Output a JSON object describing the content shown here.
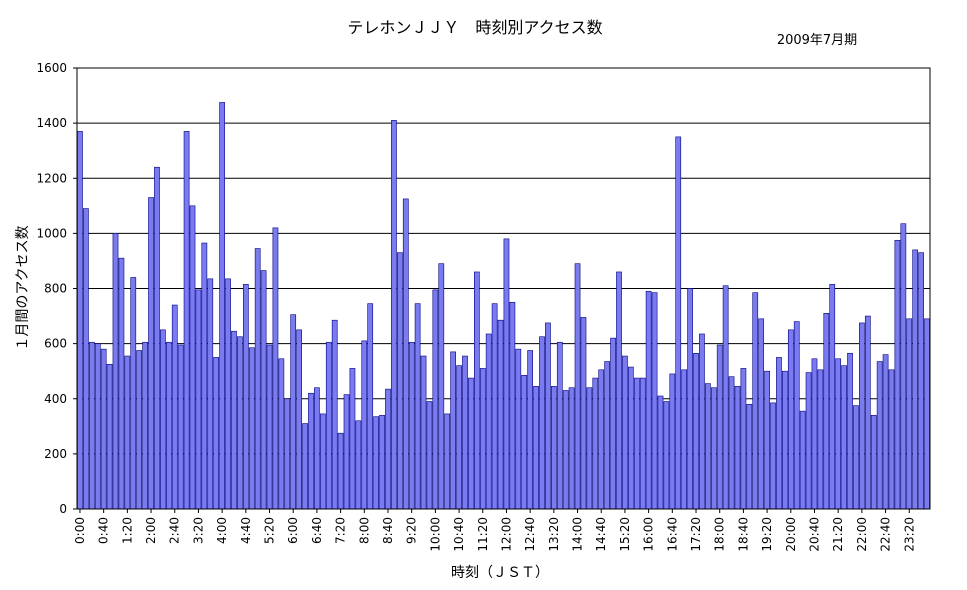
{
  "chart_data": {
    "type": "bar",
    "title": "テレホンＪＪＹ　時刻別アクセス数",
    "subtitle": "2009年7月期",
    "xlabel": "時刻（ＪＳＴ）",
    "ylabel": "１月間のアクセス数",
    "ylim": [
      0,
      1600
    ],
    "yticks": [
      "0",
      "200",
      "400",
      "600",
      "800",
      "1000",
      "1200",
      "1400",
      "1600"
    ],
    "grid": true,
    "bar_color": "#7b7bf0",
    "bar_stroke": "#000080",
    "interval_minutes": 10,
    "x_tick_labels": [
      "0:00",
      "0:40",
      "1:20",
      "2:00",
      "2:40",
      "3:20",
      "4:00",
      "4:40",
      "5:20",
      "6:00",
      "6:40",
      "7:20",
      "8:00",
      "8:40",
      "9:20",
      "10:00",
      "10:40",
      "11:20",
      "12:00",
      "12:40",
      "13:20",
      "14:00",
      "14:40",
      "15:20",
      "16:00",
      "16:40",
      "17:20",
      "18:00",
      "18:40",
      "19:20",
      "20:00",
      "20:40",
      "21:20",
      "22:00",
      "22:40",
      "23:20"
    ],
    "values": [
      1370,
      1090,
      605,
      600,
      580,
      525,
      1000,
      910,
      555,
      840,
      575,
      605,
      1130,
      1240,
      650,
      605,
      740,
      595,
      1370,
      1100,
      795,
      965,
      835,
      550,
      1475,
      835,
      645,
      625,
      815,
      585,
      945,
      865,
      595,
      1020,
      545,
      400,
      705,
      650,
      310,
      420,
      440,
      345,
      605,
      685,
      275,
      415,
      510,
      320,
      610,
      745,
      335,
      340,
      435,
      1410,
      930,
      1125,
      605,
      745,
      555,
      390,
      795,
      890,
      345,
      570,
      520,
      555,
      475,
      860,
      510,
      635,
      745,
      685,
      980,
      750,
      580,
      485,
      575,
      445,
      625,
      675,
      445,
      605,
      430,
      440,
      890,
      695,
      440,
      475,
      505,
      535,
      620,
      860,
      555,
      515,
      475,
      475,
      790,
      785,
      410,
      390,
      490,
      1350,
      505,
      800,
      565,
      635,
      455,
      440,
      595,
      810,
      480,
      445,
      510,
      380,
      785,
      690,
      500,
      385,
      550,
      500,
      650,
      680,
      355,
      495,
      545,
      505,
      710,
      815,
      545,
      520,
      565,
      375,
      675,
      700,
      340,
      535,
      560,
      505,
      975,
      1035,
      690,
      940,
      930,
      690
    ]
  }
}
